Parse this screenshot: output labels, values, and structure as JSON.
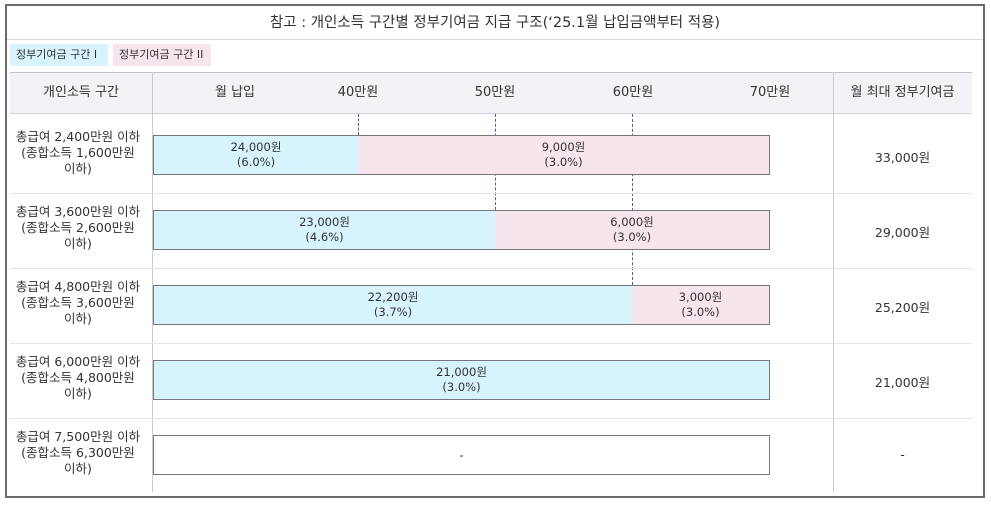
{
  "title": "참고 : 개인소득 구간별 정부기여금 지급 구조(‘25.1월 납입금액부터 적용)",
  "legend": [
    {
      "label": "정부기여금 구간 I",
      "color": "#d7f3fd"
    },
    {
      "label": "정부기여금 구간 II",
      "color": "#f7e5ed"
    }
  ],
  "header": {
    "col_income": "개인소득 구간",
    "col_monthly": "월 납입",
    "ticks": [
      "40만원",
      "50만원",
      "60만원",
      "70만원"
    ],
    "col_max": "월 최대 정부기여금"
  },
  "chart_data": {
    "type": "bar",
    "orientation": "horizontal-stacked",
    "x_unit": "만원",
    "xlim": [
      0,
      70
    ],
    "x_ticks": [
      40,
      50,
      60,
      70
    ],
    "segment_boundaries": [
      40,
      50,
      60
    ],
    "series": [
      {
        "name": "정부기여금 구간 I",
        "color": "#d7f3fd"
      },
      {
        "name": "정부기여금 구간 II",
        "color": "#f7e5ed"
      }
    ],
    "rows": [
      {
        "income": "총급여 2,400만원 이하\n(종합소득 1,600만원\n이하)",
        "segments": [
          {
            "series": 0,
            "from": 0,
            "to": 40,
            "amount": "24,000원",
            "rate": "(6.0%)"
          },
          {
            "series": 1,
            "from": 40,
            "to": 70,
            "amount": "9,000원",
            "rate": "(3.0%)"
          }
        ],
        "max_contribution": "33,000원"
      },
      {
        "income": "총급여 3,600만원 이하\n(종합소득 2,600만원\n이하)",
        "segments": [
          {
            "series": 0,
            "from": 0,
            "to": 50,
            "amount": "23,000원",
            "rate": "(4.6%)"
          },
          {
            "series": 1,
            "from": 50,
            "to": 70,
            "amount": "6,000원",
            "rate": "(3.0%)"
          }
        ],
        "max_contribution": "29,000원"
      },
      {
        "income": "총급여 4,800만원 이하\n(종합소득 3,600만원\n이하)",
        "segments": [
          {
            "series": 0,
            "from": 0,
            "to": 60,
            "amount": "22,200원",
            "rate": "(3.7%)"
          },
          {
            "series": 1,
            "from": 60,
            "to": 70,
            "amount": "3,000원",
            "rate": "(3.0%)"
          }
        ],
        "max_contribution": "25,200원"
      },
      {
        "income": "총급여 6,000만원 이하\n(종합소득 4,800만원\n이하)",
        "segments": [
          {
            "series": 0,
            "from": 0,
            "to": 70,
            "amount": "21,000원",
            "rate": "(3.0%)"
          }
        ],
        "max_contribution": "21,000원"
      },
      {
        "income": "총급여 7,500만원 이하\n(종합소득 6,300만원\n이하)",
        "segments": [
          {
            "series": -1,
            "from": 0,
            "to": 70,
            "amount": "-",
            "rate": ""
          }
        ],
        "max_contribution": "-"
      }
    ]
  }
}
